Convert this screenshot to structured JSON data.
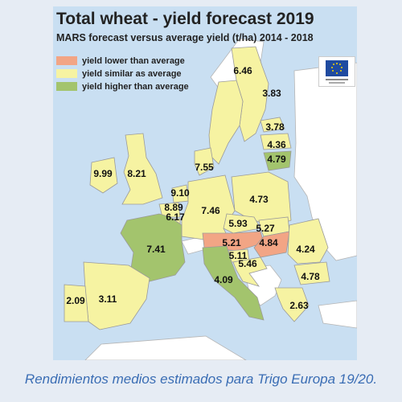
{
  "title": "Total wheat - yield forecast 2019",
  "subtitle": "MARS forecast versus average yield (t/ha) 2014 - 2018",
  "legend": [
    {
      "label": "yield lower than average",
      "color": "#f2a585"
    },
    {
      "label": "yield similar as average",
      "color": "#f6f3a2"
    },
    {
      "label": "yield higher than average",
      "color": "#a3c46d"
    }
  ],
  "colors": {
    "sea": "#c9dff2",
    "non_eu": "#ffffff",
    "border": "#9a9a9a",
    "caption": "#3a6db4"
  },
  "regions": [
    {
      "id": "ireland",
      "value": "9.99",
      "category": "similar"
    },
    {
      "id": "uk",
      "value": "8.21",
      "category": "similar"
    },
    {
      "id": "denmark",
      "value": "7.55",
      "category": "similar"
    },
    {
      "id": "finland",
      "value": "6.46",
      "category": "similar"
    },
    {
      "id": "sweden",
      "value": "3.83",
      "category": "similar"
    },
    {
      "id": "estonia",
      "value": "3.78",
      "category": "similar"
    },
    {
      "id": "latvia",
      "value": "4.36",
      "category": "similar"
    },
    {
      "id": "lithuania",
      "value": "4.79",
      "category": "higher"
    },
    {
      "id": "netherlands",
      "value": "9.10",
      "category": "similar"
    },
    {
      "id": "belgium",
      "value": "8.89",
      "category": "similar"
    },
    {
      "id": "luxembourg",
      "value": "6.17",
      "category": "similar"
    },
    {
      "id": "germany",
      "value": "7.46",
      "category": "similar"
    },
    {
      "id": "poland",
      "value": "4.73",
      "category": "similar"
    },
    {
      "id": "czechia",
      "value": "5.93",
      "category": "similar"
    },
    {
      "id": "slovakia",
      "value": "5.27",
      "category": "similar"
    },
    {
      "id": "austria",
      "value": "5.21",
      "category": "lower"
    },
    {
      "id": "hungary",
      "value": "4.84",
      "category": "lower"
    },
    {
      "id": "slovenia",
      "value": "5.11",
      "category": "similar"
    },
    {
      "id": "croatia",
      "value": "5.46",
      "category": "similar"
    },
    {
      "id": "romania",
      "value": "4.24",
      "category": "similar"
    },
    {
      "id": "bulgaria",
      "value": "4.78",
      "category": "similar"
    },
    {
      "id": "greece",
      "value": "2.63",
      "category": "similar"
    },
    {
      "id": "france",
      "value": "7.41",
      "category": "higher"
    },
    {
      "id": "italy",
      "value": "4.09",
      "category": "higher"
    },
    {
      "id": "spain",
      "value": "3.11",
      "category": "similar"
    },
    {
      "id": "portugal",
      "value": "2.09",
      "category": "similar"
    }
  ],
  "caption": "Rendimientos medios estimados para Trigo Europa 19/20."
}
